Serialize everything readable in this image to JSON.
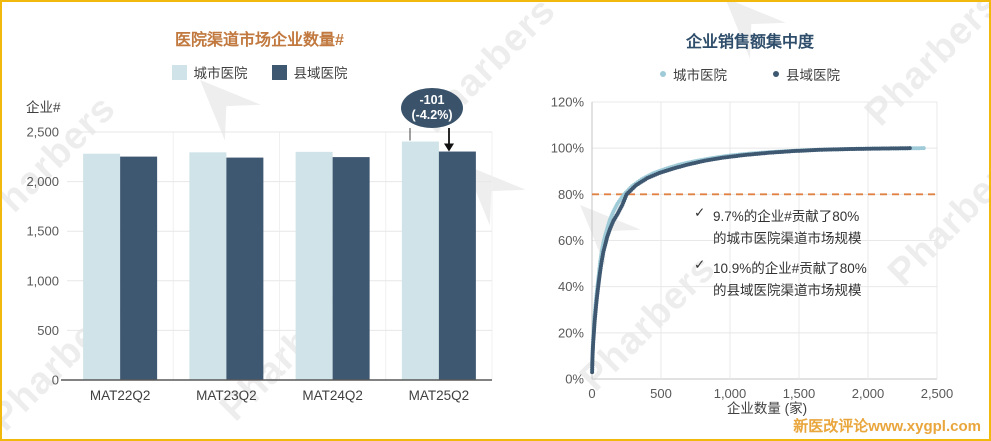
{
  "page": {
    "background": "#FFFFFF",
    "border_color": "#F0B90B",
    "watermark_text": "Pharbers",
    "footer_text": "新医改评论www.xygpl.com",
    "footer_color": "#E9A63C"
  },
  "chart_data": [
    {
      "type": "bar",
      "title": "医院渠道市场企业数量#",
      "title_color": "#C1793F",
      "ylabel": "企业#",
      "xlabel": "",
      "ylim": [
        0,
        2500
      ],
      "yticks": [
        "0",
        "500",
        "1,000",
        "1,500",
        "2,000",
        "2,500"
      ],
      "categories": [
        "MAT22Q2",
        "MAT23Q2",
        "MAT24Q2",
        "MAT25Q2"
      ],
      "series": [
        {
          "name": "城市医院",
          "color": "#CFE3E8",
          "values": [
            2281,
            2295,
            2300,
            2404
          ]
        },
        {
          "name": "县域医院",
          "color": "#3F5871",
          "values": [
            2252,
            2242,
            2247,
            2303
          ]
        }
      ],
      "grid": true,
      "legend_position": "top",
      "annotation": {
        "line1": "-101",
        "line2": "(-4.2%)",
        "bubble_color": "#3A536B",
        "target": "MAT25Q2 县域医院"
      }
    },
    {
      "type": "scatter",
      "title": "企业销售额集中度",
      "title_color": "#2F4E6B",
      "xlabel": "企业数量 (家)",
      "ylabel": "",
      "xlim": [
        0,
        2500
      ],
      "ylim_pct": [
        0,
        120
      ],
      "xticks": [
        "0",
        "500",
        "1,000",
        "1,500",
        "2,000",
        "2,500"
      ],
      "yticks": [
        "0%",
        "20%",
        "40%",
        "60%",
        "80%",
        "100%",
        "120%"
      ],
      "grid": true,
      "legend_position": "top",
      "reference_line": {
        "y_pct": 80,
        "style": "dashed",
        "color": "#E08244"
      },
      "series": [
        {
          "name": "城市医院",
          "color": "#9FCBD8",
          "points": [
            [
              1,
              4
            ],
            [
              2,
              7
            ],
            [
              3,
              10
            ],
            [
              5,
              13
            ],
            [
              7,
              16
            ],
            [
              10,
              19
            ],
            [
              14,
              23
            ],
            [
              18,
              27
            ],
            [
              24,
              31
            ],
            [
              30,
              35
            ],
            [
              37,
              39
            ],
            [
              45,
              43
            ],
            [
              52,
              47
            ],
            [
              60,
              51
            ],
            [
              70,
              55
            ],
            [
              82,
              59
            ],
            [
              95,
              62
            ],
            [
              110,
              65
            ],
            [
              130,
              69
            ],
            [
              155,
              72.5
            ],
            [
              185,
              76
            ],
            [
              233,
              80
            ],
            [
              290,
              83.5
            ],
            [
              360,
              86.5
            ],
            [
              440,
              89
            ],
            [
              530,
              91
            ],
            [
              630,
              92.8
            ],
            [
              740,
              94.3
            ],
            [
              860,
              95.6
            ],
            [
              1000,
              96.8
            ],
            [
              1150,
              97.7
            ],
            [
              1320,
              98.4
            ],
            [
              1500,
              99
            ],
            [
              1700,
              99.4
            ],
            [
              1900,
              99.7
            ],
            [
              2100,
              99.85
            ],
            [
              2404,
              100
            ]
          ]
        },
        {
          "name": "县域医院",
          "color": "#3E5871",
          "points": [
            [
              1,
              3
            ],
            [
              2,
              6
            ],
            [
              3,
              8.5
            ],
            [
              5,
              11.5
            ],
            [
              7,
              14
            ],
            [
              10,
              17
            ],
            [
              14,
              20.5
            ],
            [
              18,
              24
            ],
            [
              24,
              28
            ],
            [
              30,
              32
            ],
            [
              37,
              36
            ],
            [
              45,
              40
            ],
            [
              52,
              43.5
            ],
            [
              60,
              47
            ],
            [
              70,
              51
            ],
            [
              82,
              55
            ],
            [
              95,
              58
            ],
            [
              110,
              61.5
            ],
            [
              130,
              65
            ],
            [
              155,
              68.5
            ],
            [
              185,
              71.5
            ],
            [
              220,
              75.5
            ],
            [
              251,
              80
            ],
            [
              320,
              84
            ],
            [
              400,
              87
            ],
            [
              490,
              89.3
            ],
            [
              590,
              91.2
            ],
            [
              700,
              93
            ],
            [
              820,
              94.6
            ],
            [
              950,
              95.9
            ],
            [
              1100,
              97
            ],
            [
              1280,
              98
            ],
            [
              1450,
              98.7
            ],
            [
              1650,
              99.3
            ],
            [
              1850,
              99.6
            ],
            [
              2050,
              99.8
            ],
            [
              2303,
              100
            ]
          ]
        }
      ],
      "annotations": [
        {
          "check": "✓",
          "line1": "9.7%的企业#贡献了80%",
          "line2": "的城市医院渠道市场规模"
        },
        {
          "check": "✓",
          "line1": "10.9%的企业#贡献了80%",
          "line2": "的县域医院渠道市场规模"
        }
      ]
    }
  ]
}
